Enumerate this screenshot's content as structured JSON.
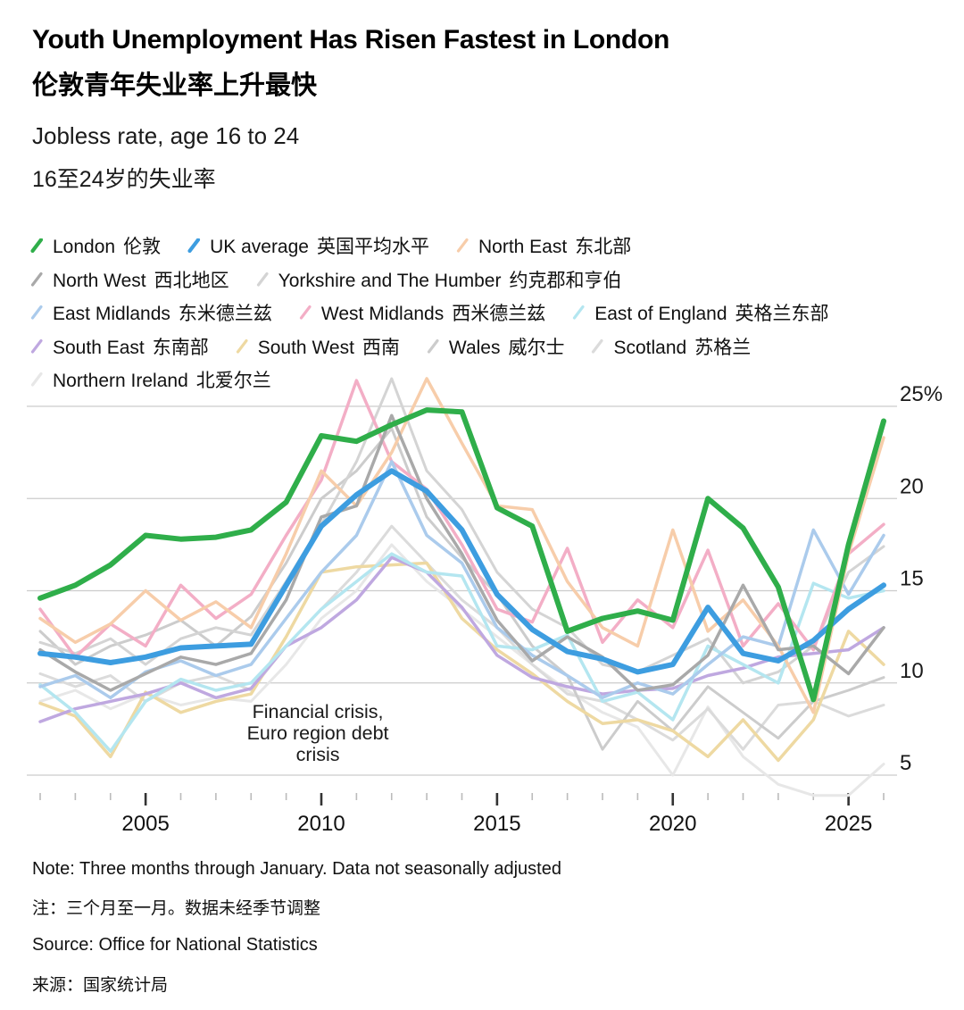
{
  "header": {
    "title_en": "Youth Unemployment Has Risen Fastest in London",
    "title_zh": "伦敦青年失业率上升最快",
    "subtitle_en": "Jobless rate, age 16 to 24",
    "subtitle_zh": "16至24岁的失业率"
  },
  "chart_data": {
    "type": "line",
    "x": [
      2002,
      2003,
      2004,
      2005,
      2006,
      2007,
      2008,
      2009,
      2010,
      2011,
      2012,
      2013,
      2014,
      2015,
      2016,
      2017,
      2018,
      2019,
      2020,
      2021,
      2022,
      2023,
      2024,
      2025,
      2026
    ],
    "x_tick_years_labeled": [
      2005,
      2010,
      2015,
      2020,
      2025
    ],
    "x_range": [
      2002,
      2026
    ],
    "y_ticks": [
      5,
      10,
      15,
      20,
      25
    ],
    "y_tick_labels": [
      "5",
      "10",
      "15",
      "20",
      "25%"
    ],
    "ylim": [
      3.5,
      27
    ],
    "grid": "horizontal",
    "legend_position": "top",
    "annotation": {
      "lines": [
        "Financial crisis,",
        "Euro region debt",
        "crisis"
      ],
      "x_year": 2009.9,
      "y_value": 8.1
    },
    "series": [
      {
        "name_en": "London",
        "name_zh": "伦敦",
        "color": "#2fae4a",
        "width": 6,
        "values": [
          14.6,
          15.3,
          16.4,
          18.0,
          17.8,
          17.9,
          18.3,
          19.8,
          23.4,
          23.1,
          24.0,
          24.8,
          24.7,
          19.5,
          18.5,
          12.8,
          13.5,
          13.9,
          13.4,
          20.0,
          18.4,
          15.2,
          9.1,
          17.5,
          24.2
        ]
      },
      {
        "name_en": "UK average",
        "name_zh": "英国平均水平",
        "color": "#3d9de0",
        "width": 6,
        "values": [
          11.6,
          11.4,
          11.1,
          11.4,
          11.9,
          12.0,
          12.1,
          15.3,
          18.5,
          20.2,
          21.5,
          20.4,
          18.3,
          14.8,
          12.9,
          11.7,
          11.3,
          10.6,
          11.0,
          14.1,
          11.6,
          11.2,
          12.3,
          14.0,
          15.3
        ]
      },
      {
        "name_en": "North East",
        "name_zh": "东北部",
        "color": "#f7cdaa",
        "width": 3.5,
        "values": [
          13.5,
          12.2,
          13.2,
          15.0,
          13.4,
          14.4,
          13.0,
          17.0,
          21.5,
          19.6,
          22.5,
          26.5,
          23.0,
          19.6,
          19.4,
          15.5,
          13.0,
          12.0,
          18.3,
          12.8,
          14.5,
          12.0,
          8.4,
          17.0,
          23.3
        ]
      },
      {
        "name_en": "North West",
        "name_zh": "西北地区",
        "color": "#a9a9a9",
        "width": 3.5,
        "values": [
          11.8,
          10.6,
          9.6,
          10.5,
          11.4,
          11.0,
          11.6,
          14.5,
          19.0,
          19.6,
          24.5,
          20.0,
          17.0,
          13.4,
          11.2,
          12.5,
          11.4,
          9.6,
          9.9,
          11.5,
          15.3,
          11.8,
          12.0,
          10.5,
          13.0
        ]
      },
      {
        "name_en": "Yorkshire and The Humber",
        "name_zh": "约克郡和亨伯",
        "color": "#d4d4d4",
        "width": 3,
        "values": [
          12.2,
          11.6,
          12.4,
          11.0,
          12.4,
          13.0,
          12.6,
          15.5,
          18.6,
          22.0,
          26.5,
          21.5,
          19.4,
          16.0,
          14.0,
          13.0,
          11.0,
          10.6,
          11.5,
          12.4,
          10.0,
          10.6,
          12.0,
          16.0,
          17.4
        ]
      },
      {
        "name_en": "East Midlands",
        "name_zh": "东米德兰兹",
        "color": "#abcbec",
        "width": 3.5,
        "values": [
          9.8,
          10.4,
          9.2,
          10.6,
          11.2,
          10.4,
          11.0,
          13.5,
          16.0,
          18.0,
          22.0,
          18.0,
          16.5,
          13.0,
          11.5,
          10.4,
          9.2,
          10.0,
          9.4,
          11.0,
          12.5,
          12.0,
          18.3,
          14.8,
          18.0
        ]
      },
      {
        "name_en": "West Midlands",
        "name_zh": "西米德兰兹",
        "color": "#f3aec6",
        "width": 3.5,
        "values": [
          14.0,
          11.4,
          13.2,
          12.0,
          15.3,
          13.5,
          14.8,
          18.0,
          21.0,
          26.4,
          22.0,
          20.5,
          17.5,
          14.0,
          13.3,
          17.3,
          12.2,
          14.5,
          13.0,
          17.2,
          12.0,
          14.3,
          11.8,
          17.0,
          18.6
        ]
      },
      {
        "name_en": "East of England",
        "name_zh": "英格兰东部",
        "color": "#b4e6f0",
        "width": 3.5,
        "values": [
          9.9,
          8.4,
          6.3,
          9.0,
          10.2,
          9.6,
          10.0,
          12.0,
          14.0,
          15.5,
          17.0,
          16.0,
          15.8,
          12.0,
          11.8,
          12.6,
          9.0,
          9.5,
          8.0,
          12.0,
          11.0,
          10.0,
          15.4,
          14.6,
          15.0
        ]
      },
      {
        "name_en": "South East",
        "name_zh": "东南部",
        "color": "#bfa8e0",
        "width": 3.5,
        "values": [
          7.9,
          8.6,
          9.0,
          9.4,
          10.0,
          9.2,
          9.7,
          12.0,
          13.0,
          14.5,
          16.8,
          16.0,
          14.1,
          11.5,
          10.3,
          9.8,
          9.4,
          9.6,
          9.7,
          10.4,
          10.8,
          11.4,
          11.6,
          11.8,
          13.0
        ]
      },
      {
        "name_en": "South West",
        "name_zh": "西南",
        "color": "#eed9a2",
        "width": 3.5,
        "values": [
          8.9,
          8.2,
          6.0,
          9.5,
          8.4,
          9.0,
          9.4,
          12.5,
          16.0,
          16.3,
          16.4,
          16.5,
          13.5,
          11.8,
          10.5,
          9.0,
          7.8,
          8.0,
          7.4,
          6.0,
          8.0,
          5.8,
          8.0,
          12.8,
          11.0
        ]
      },
      {
        "name_en": "Wales",
        "name_zh": "威尔士",
        "color": "#cccccc",
        "width": 3,
        "values": [
          12.8,
          11.0,
          12.0,
          12.6,
          13.4,
          12.0,
          13.6,
          16.5,
          20.0,
          21.5,
          23.8,
          19.0,
          16.8,
          14.8,
          12.0,
          10.4,
          6.4,
          9.0,
          7.4,
          9.8,
          8.4,
          7.0,
          9.0,
          9.6,
          10.3
        ]
      },
      {
        "name_en": "Scotland",
        "name_zh": "苏格兰",
        "color": "#dbdbdb",
        "width": 3,
        "values": [
          10.5,
          9.8,
          10.4,
          9.0,
          10.0,
          10.4,
          9.6,
          12.0,
          14.0,
          16.0,
          18.5,
          16.5,
          14.5,
          13.0,
          11.0,
          9.4,
          9.0,
          8.0,
          6.9,
          8.6,
          6.4,
          8.8,
          9.0,
          8.2,
          8.8
        ]
      },
      {
        "name_en": "Northern Ireland",
        "name_zh": "北爱尔兰",
        "color": "#e7e7e7",
        "width": 3,
        "values": [
          9.0,
          9.6,
          8.6,
          9.4,
          8.8,
          9.2,
          9.0,
          11.0,
          13.5,
          15.0,
          17.5,
          15.5,
          14.0,
          12.5,
          11.0,
          9.6,
          8.4,
          7.6,
          5.0,
          8.7,
          6.0,
          4.5,
          3.9,
          3.9,
          5.6
        ]
      }
    ]
  },
  "footer": {
    "note_en": "Note: Three months through January. Data not seasonally adjusted",
    "note_zh": "注：三个月至一月。数据未经季节调整",
    "source_en": "Source: Office for National Statistics",
    "source_zh": "来源：国家统计局"
  }
}
